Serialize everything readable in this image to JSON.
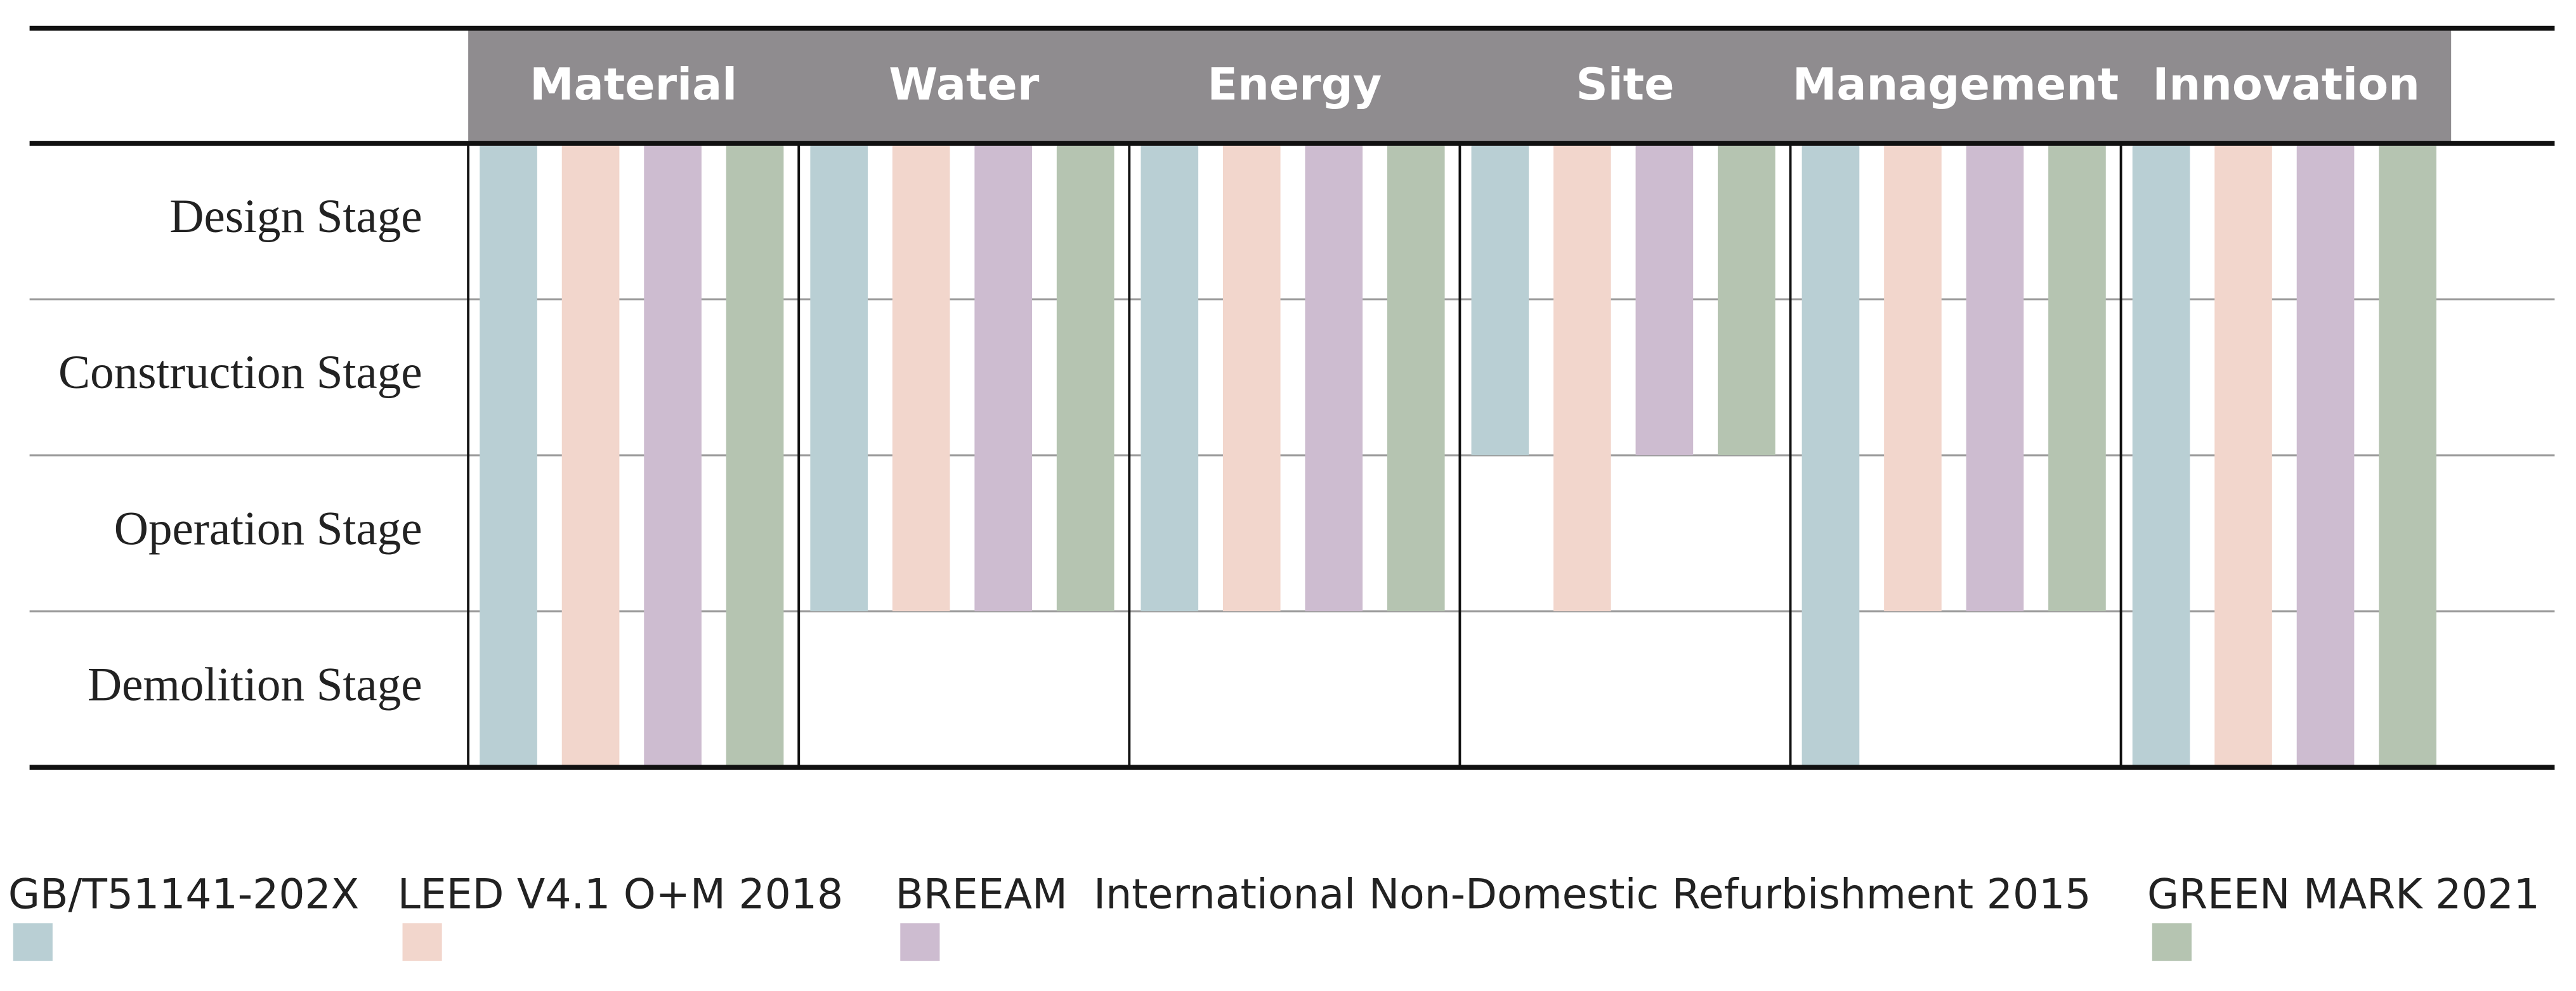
{
  "chart_data": {
    "type": "bar",
    "categories": [
      "Material",
      "Water",
      "Energy",
      "Site",
      "Management",
      "Innovation"
    ],
    "stages": [
      "Design Stage",
      "Construction Stage",
      "Operation Stage",
      "Demolition Stage"
    ],
    "ylim": [
      0,
      4
    ],
    "series": [
      {
        "name": "GB/T51141-202X",
        "color": "#b9cfd4",
        "values": [
          4,
          3,
          3,
          2,
          4,
          4
        ]
      },
      {
        "name": "LEED V4.1 O+M 2018",
        "color": "#f2d6cc",
        "values": [
          4,
          3,
          3,
          3,
          3,
          4
        ]
      },
      {
        "name": "BREEAM  International Non-Domestic Refurbishment 2015",
        "color": "#cdbcd0",
        "values": [
          4,
          3,
          3,
          2,
          3,
          4
        ]
      },
      {
        "name": "GREEN MARK 2021",
        "color": "#b5c4b1",
        "values": [
          4,
          3,
          3,
          2,
          3,
          4
        ]
      }
    ]
  }
}
